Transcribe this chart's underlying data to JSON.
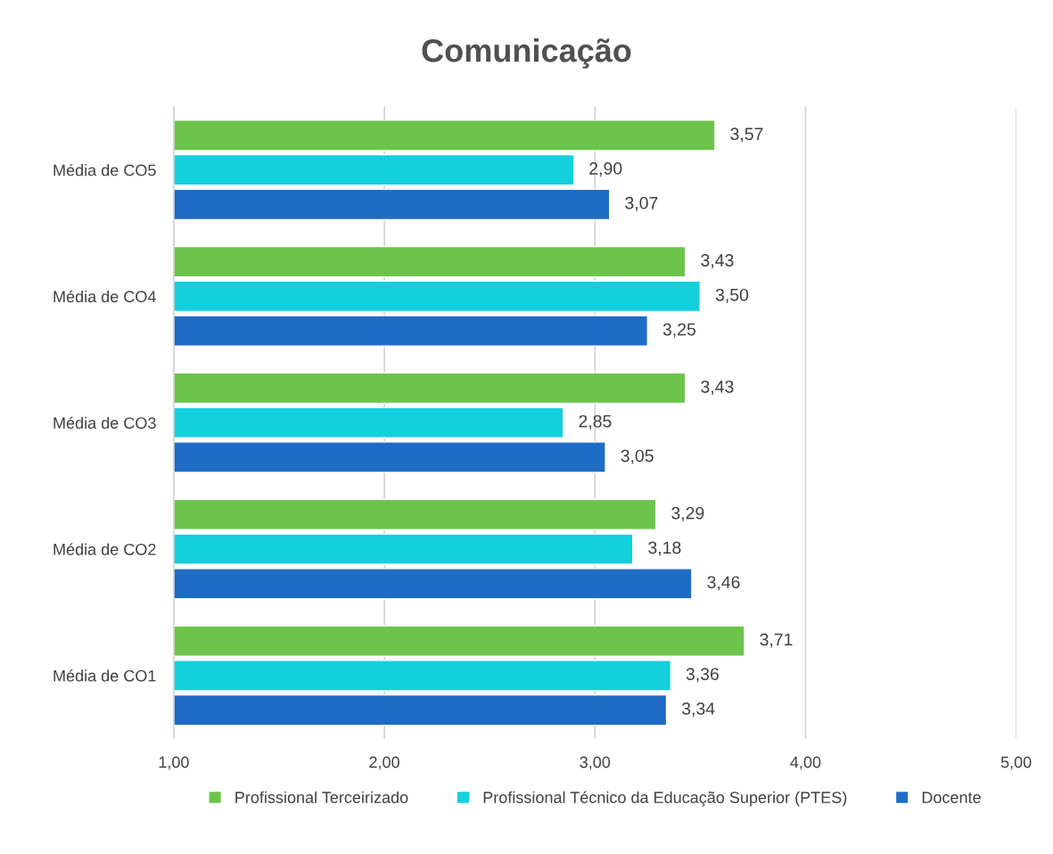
{
  "chart_data": {
    "type": "bar",
    "orientation": "horizontal",
    "title": "Comunicação",
    "categories": [
      "Média de CO5",
      "Média de CO4",
      "Média de CO3",
      "Média de CO2",
      "Média de CO1"
    ],
    "series": [
      {
        "name": "Profissional Terceirizado",
        "color": "#6cc44c",
        "values": [
          3.57,
          3.43,
          3.43,
          3.29,
          3.71
        ],
        "value_labels": [
          "3,57",
          "3,43",
          "3,43",
          "3,29",
          "3,71"
        ]
      },
      {
        "name": "Profissional Técnico da Educação Superior (PTES)",
        "color": "#14cfdc",
        "values": [
          2.9,
          3.5,
          2.85,
          3.18,
          3.36
        ],
        "value_labels": [
          "2,90",
          "3,50",
          "2,85",
          "3,18",
          "3,36"
        ]
      },
      {
        "name": "Docente",
        "color": "#1f6cc6",
        "values": [
          3.07,
          3.25,
          3.05,
          3.46,
          3.34
        ],
        "value_labels": [
          "3,07",
          "3,25",
          "3,05",
          "3,46",
          "3,34"
        ]
      }
    ],
    "xlim": [
      1,
      5
    ],
    "xticks": [
      {
        "value": 1,
        "label": "1,00"
      },
      {
        "value": 2,
        "label": "2,00"
      },
      {
        "value": 3,
        "label": "3,00"
      },
      {
        "value": 4,
        "label": "4,00"
      },
      {
        "value": 5,
        "label": "5,00"
      }
    ],
    "grid": "x",
    "legend": "bottom"
  }
}
